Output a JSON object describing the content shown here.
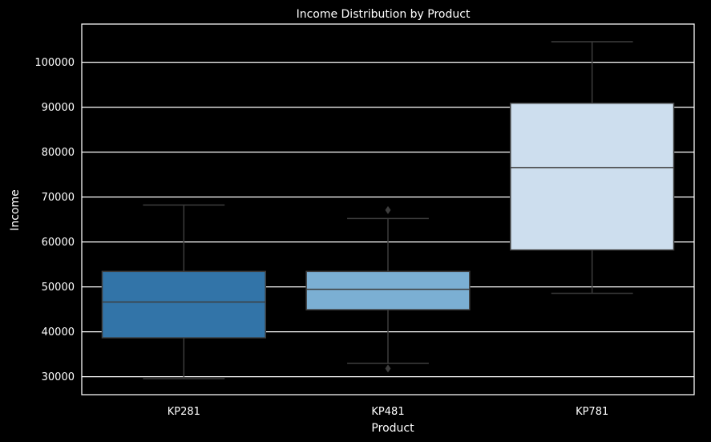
{
  "chart_data": {
    "type": "box",
    "title": "Income Distribution by Product",
    "xlabel": "Product",
    "ylabel": "Income",
    "ylim": [
      26000,
      108500
    ],
    "yticks": [
      30000,
      40000,
      50000,
      60000,
      70000,
      80000,
      90000,
      100000
    ],
    "grid": true,
    "categories": [
      "KP281",
      "KP481",
      "KP781"
    ],
    "boxes": [
      {
        "category": "KP281",
        "whisker_low": 29562,
        "q1": 38658,
        "median": 46617,
        "q3": 53439,
        "whisker_high": 68220,
        "outliers": [],
        "color": "#3274a8"
      },
      {
        "category": "KP481",
        "whisker_low": 32973,
        "q1": 44911,
        "median": 49459,
        "q3": 53439,
        "whisker_high": 65220,
        "outliers": [
          31836,
          67083
        ],
        "color": "#7bafd3"
      },
      {
        "category": "KP781",
        "whisker_low": 48556,
        "q1": 58204,
        "median": 76568,
        "q3": 90886,
        "whisker_high": 104581,
        "outliers": [],
        "color": "#cddeee"
      }
    ],
    "colors": {
      "background": "#000000",
      "grid": "#ffffff",
      "line": "#3d3d3d",
      "text": "#ffffff"
    }
  }
}
